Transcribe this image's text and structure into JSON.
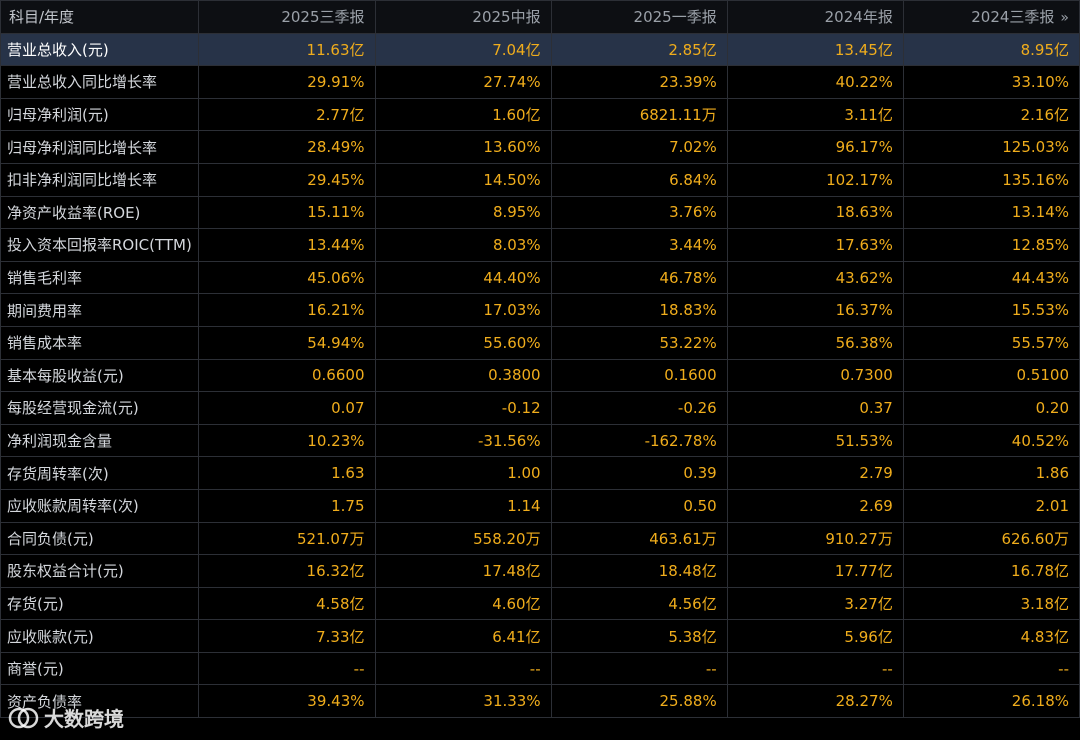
{
  "header": {
    "label": "科目/年度",
    "periods": [
      "2025三季报",
      "2025中报",
      "2025一季报",
      "2024年报",
      "2024三季报"
    ],
    "more_icon": "double-chevron-right-icon",
    "more_glyph": "»"
  },
  "rows": [
    {
      "label": "营业总收入(元)",
      "values": [
        "11.63亿",
        "7.04亿",
        "2.85亿",
        "13.45亿",
        "8.95亿"
      ]
    },
    {
      "label": "营业总收入同比增长率",
      "values": [
        "29.91%",
        "27.74%",
        "23.39%",
        "40.22%",
        "33.10%"
      ]
    },
    {
      "label": "归母净利润(元)",
      "values": [
        "2.77亿",
        "1.60亿",
        "6821.11万",
        "3.11亿",
        "2.16亿"
      ]
    },
    {
      "label": "归母净利润同比增长率",
      "values": [
        "28.49%",
        "13.60%",
        "7.02%",
        "96.17%",
        "125.03%"
      ]
    },
    {
      "label": "扣非净利润同比增长率",
      "values": [
        "29.45%",
        "14.50%",
        "6.84%",
        "102.17%",
        "135.16%"
      ]
    },
    {
      "label": "净资产收益率(ROE)",
      "values": [
        "15.11%",
        "8.95%",
        "3.76%",
        "18.63%",
        "13.14%"
      ]
    },
    {
      "label": "投入资本回报率ROIC(TTM)",
      "values": [
        "13.44%",
        "8.03%",
        "3.44%",
        "17.63%",
        "12.85%"
      ]
    },
    {
      "label": "销售毛利率",
      "values": [
        "45.06%",
        "44.40%",
        "46.78%",
        "43.62%",
        "44.43%"
      ]
    },
    {
      "label": "期间费用率",
      "values": [
        "16.21%",
        "17.03%",
        "18.83%",
        "16.37%",
        "15.53%"
      ]
    },
    {
      "label": "销售成本率",
      "values": [
        "54.94%",
        "55.60%",
        "53.22%",
        "56.38%",
        "55.57%"
      ]
    },
    {
      "label": "基本每股收益(元)",
      "values": [
        "0.6600",
        "0.3800",
        "0.1600",
        "0.7300",
        "0.5100"
      ]
    },
    {
      "label": "每股经营现金流(元)",
      "values": [
        "0.07",
        "-0.12",
        "-0.26",
        "0.37",
        "0.20"
      ]
    },
    {
      "label": "净利润现金含量",
      "values": [
        "10.23%",
        "-31.56%",
        "-162.78%",
        "51.53%",
        "40.52%"
      ]
    },
    {
      "label": "存货周转率(次)",
      "values": [
        "1.63",
        "1.00",
        "0.39",
        "2.79",
        "1.86"
      ]
    },
    {
      "label": "应收账款周转率(次)",
      "values": [
        "1.75",
        "1.14",
        "0.50",
        "2.69",
        "2.01"
      ]
    },
    {
      "label": "合同负债(元)",
      "values": [
        "521.07万",
        "558.20万",
        "463.61万",
        "910.27万",
        "626.60万"
      ]
    },
    {
      "label": "股东权益合计(元)",
      "values": [
        "16.32亿",
        "17.48亿",
        "18.48亿",
        "17.77亿",
        "16.78亿"
      ]
    },
    {
      "label": "存货(元)",
      "values": [
        "4.58亿",
        "4.60亿",
        "4.56亿",
        "3.27亿",
        "3.18亿"
      ]
    },
    {
      "label": "应收账款(元)",
      "values": [
        "7.33亿",
        "6.41亿",
        "5.38亿",
        "5.96亿",
        "4.83亿"
      ]
    },
    {
      "label": "商誉(元)",
      "values": [
        "--",
        "--",
        "--",
        "--",
        "--"
      ]
    },
    {
      "label": "资产负债率",
      "values": [
        "39.43%",
        "31.33%",
        "25.88%",
        "28.27%",
        "26.18%"
      ]
    }
  ],
  "watermark": {
    "text": "大数跨境",
    "logo_icon": "watermark-logo-icon"
  },
  "colors": {
    "value": "#f0ad1c",
    "highlight_row": "#273348",
    "background": "#000000",
    "border": "#2c2f36"
  }
}
